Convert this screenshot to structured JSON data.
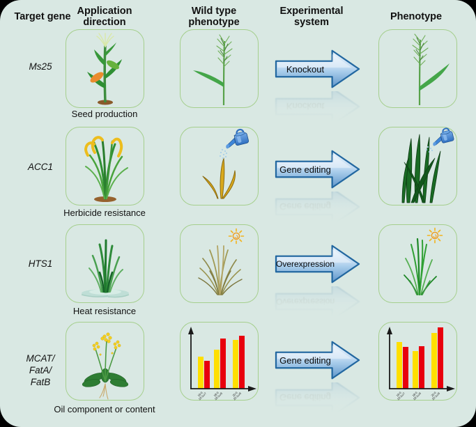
{
  "palette": {
    "frame_background": "#d9e8e3",
    "outer_background": "#000000",
    "box_border": "#a5cf8d",
    "arrow_border": "#2267a0",
    "arrow_fill_light": "#e9f3fb",
    "arrow_fill_dark": "#5e94c9",
    "bar_yellow": "#ffdf00",
    "bar_red": "#e8000d"
  },
  "headers": [
    "Target gene",
    "Application direction",
    "Wild type phenotype",
    "Experimental system",
    "Phenotype"
  ],
  "rows": [
    {
      "gene_lines": [
        "Ms25"
      ],
      "application_caption": "Seed production",
      "arrow_label": "Knockout",
      "application_icon": "maize-plant",
      "wild_type_icon": "grass-panicle",
      "phenotype_icon": "grass-panicle-edited"
    },
    {
      "gene_lines": [
        "ACC1"
      ],
      "application_caption": "Herbicide resistance",
      "arrow_label": "Gene editing",
      "application_icon": "rice-plant",
      "wild_type_icon": "wilted-plant-with-watering-can",
      "phenotype_icon": "healthy-grass-with-watering-can"
    },
    {
      "gene_lines": [
        "HTS1"
      ],
      "application_caption": "Heat resistance",
      "arrow_label": "Overexpression",
      "application_icon": "grass-in-water",
      "wild_type_icon": "dried-grass-with-sun",
      "phenotype_icon": "green-grass-with-sun"
    },
    {
      "gene_lines": [
        "MCAT/",
        "FatA/",
        "FatB"
      ],
      "application_caption": "Oil component or content",
      "arrow_label": "Gene editing",
      "application_icon": "rapeseed-plant",
      "wild_type_icon": "fatty-acid-bar-chart",
      "phenotype_icon": "fatty-acid-bar-chart-edited"
    }
  ],
  "chart_data": [
    {
      "id": "wild-type-oil-composition",
      "type": "bar",
      "location": "row 4, wild type phenotype",
      "categories": [
        "16:0\n16:1ω7",
        "18:0\n18:1ω9",
        "20:0\n20:1ω9"
      ],
      "series": [
        {
          "name": "yellow",
          "color": "#ffdf00",
          "values": [
            46,
            56,
            70
          ]
        },
        {
          "name": "red",
          "color": "#e8000d",
          "values": [
            40,
            72,
            76
          ]
        }
      ],
      "title": "",
      "xlabel": "",
      "ylabel": "",
      "ylim": [
        0,
        100
      ],
      "grid": false,
      "legend": "none",
      "note": "values are relative bar heights; axes are unlabeled in figure"
    },
    {
      "id": "gene-edited-oil-composition",
      "type": "bar",
      "location": "row 4, phenotype",
      "categories": [
        "16:0\n16:1ω7",
        "18:0\n18:1ω9",
        "20:0\n20:1ω9"
      ],
      "series": [
        {
          "name": "yellow",
          "color": "#ffdf00",
          "values": [
            67,
            54,
            80
          ]
        },
        {
          "name": "red",
          "color": "#e8000d",
          "values": [
            60,
            61,
            88
          ]
        }
      ],
      "title": "",
      "xlabel": "",
      "ylabel": "",
      "ylim": [
        0,
        100
      ],
      "grid": false,
      "legend": "none",
      "note": "values are relative bar heights; axes are unlabeled in figure"
    }
  ]
}
